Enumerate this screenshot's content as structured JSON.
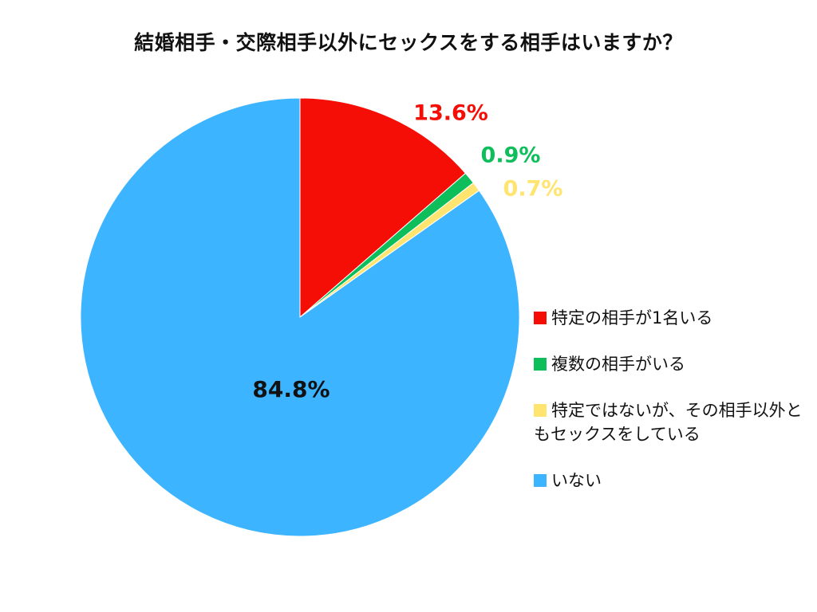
{
  "chart_data": {
    "type": "pie",
    "title": "結婚相手・交際相手以外にセックスをする相手はいますか？",
    "unit": "%",
    "slices": [
      {
        "label": "特定の相手が1名いる",
        "value": 13.6,
        "value_label": "13.6%",
        "color": "#F40E06"
      },
      {
        "label": "複数の相手がいる",
        "value": 0.9,
        "value_label": "0.9%",
        "color": "#0DBE5A"
      },
      {
        "label": "特定ではないが、その相手以外ともセックスをしている",
        "value": 0.7,
        "value_label": "0.7%",
        "color": "#FFE470"
      },
      {
        "label": "いない",
        "value": 84.8,
        "value_label": "84.8%",
        "color": "#3CB4FF"
      }
    ],
    "start_angle": "12 o'clock",
    "direction": "clockwise",
    "legend_position": "right"
  }
}
